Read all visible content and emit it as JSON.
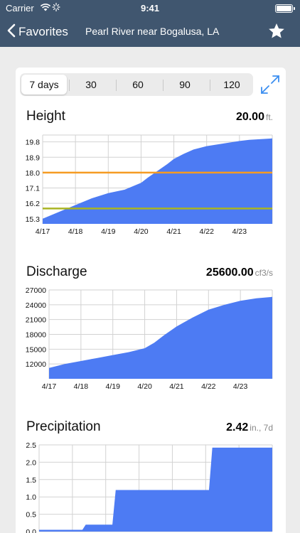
{
  "status_bar": {
    "carrier": "Carrier",
    "time": "9:41"
  },
  "nav": {
    "back_label": "Favorites",
    "title": "Pearl River near Bogalusa, LA"
  },
  "range_selector": {
    "options": [
      "7 days",
      "30",
      "60",
      "90",
      "120"
    ],
    "selected": "7 days"
  },
  "icons": {
    "back": "chevron-left-icon",
    "favorite": "star-icon",
    "expand": "expand-icon",
    "wifi": "wifi-icon",
    "battery": "battery-icon"
  },
  "colors": {
    "nav_bg": "#40566f",
    "fill": "#4d7bf3",
    "line1": "#f59b22",
    "line2": "#a9b422"
  },
  "sections": [
    {
      "title": "Height",
      "value": "20.00",
      "unit": "ft."
    },
    {
      "title": "Discharge",
      "value": "25600.00",
      "unit": "cf3/s"
    },
    {
      "title": "Precipitation",
      "value": "2.42",
      "unit": "in., 7d"
    }
  ],
  "chart_data": [
    {
      "type": "area",
      "x_labels": [
        "4/17",
        "4/18",
        "4/19",
        "4/20",
        "4/21",
        "4/22",
        "4/23"
      ],
      "xlim": [
        0,
        7
      ],
      "ylim": [
        15.0,
        20.2
      ],
      "y_ticks": [
        "15.3",
        "16.2",
        "17.1",
        "18.0",
        "18.9",
        "19.8"
      ],
      "x": [
        0,
        0.5,
        1,
        1.5,
        2,
        2.5,
        3,
        3.2,
        3.5,
        3.8,
        4,
        4.3,
        4.6,
        5,
        5.5,
        6,
        6.3,
        7
      ],
      "values": [
        15.3,
        15.7,
        16.1,
        16.5,
        16.8,
        17.0,
        17.4,
        17.7,
        18.1,
        18.5,
        18.8,
        19.1,
        19.35,
        19.55,
        19.7,
        19.85,
        19.92,
        20.0
      ],
      "reference_lines": [
        {
          "value": 18.0,
          "color": "#f59b22"
        },
        {
          "value": 15.9,
          "color": "#a9b422"
        }
      ],
      "grid": true
    },
    {
      "type": "area",
      "x_labels": [
        "4/17",
        "4/18",
        "4/19",
        "4/20",
        "4/21",
        "4/22",
        "4/23"
      ],
      "xlim": [
        0,
        7
      ],
      "ylim": [
        9000,
        27000
      ],
      "y_ticks": [
        "12000",
        "15000",
        "18000",
        "21000",
        "24000",
        "27000"
      ],
      "x": [
        0,
        0.5,
        1,
        1.5,
        2,
        2.5,
        3,
        3.3,
        3.6,
        4,
        4.5,
        5,
        5.5,
        6,
        6.5,
        7
      ],
      "values": [
        11200,
        12000,
        12600,
        13200,
        13800,
        14400,
        15200,
        16300,
        17800,
        19600,
        21400,
        23000,
        24000,
        24800,
        25300,
        25600
      ],
      "grid": true
    },
    {
      "type": "area",
      "xlim": [
        0,
        7
      ],
      "ylim": [
        0,
        2.5
      ],
      "y_ticks": [
        "0.0",
        "0.5",
        "1.0",
        "1.5",
        "2.0",
        "2.5"
      ],
      "x": [
        0,
        1.3,
        1.4,
        2.2,
        2.3,
        5.1,
        5.2,
        7
      ],
      "values": [
        0.05,
        0.05,
        0.2,
        0.2,
        1.2,
        1.2,
        2.42,
        2.42
      ],
      "grid": true
    }
  ]
}
